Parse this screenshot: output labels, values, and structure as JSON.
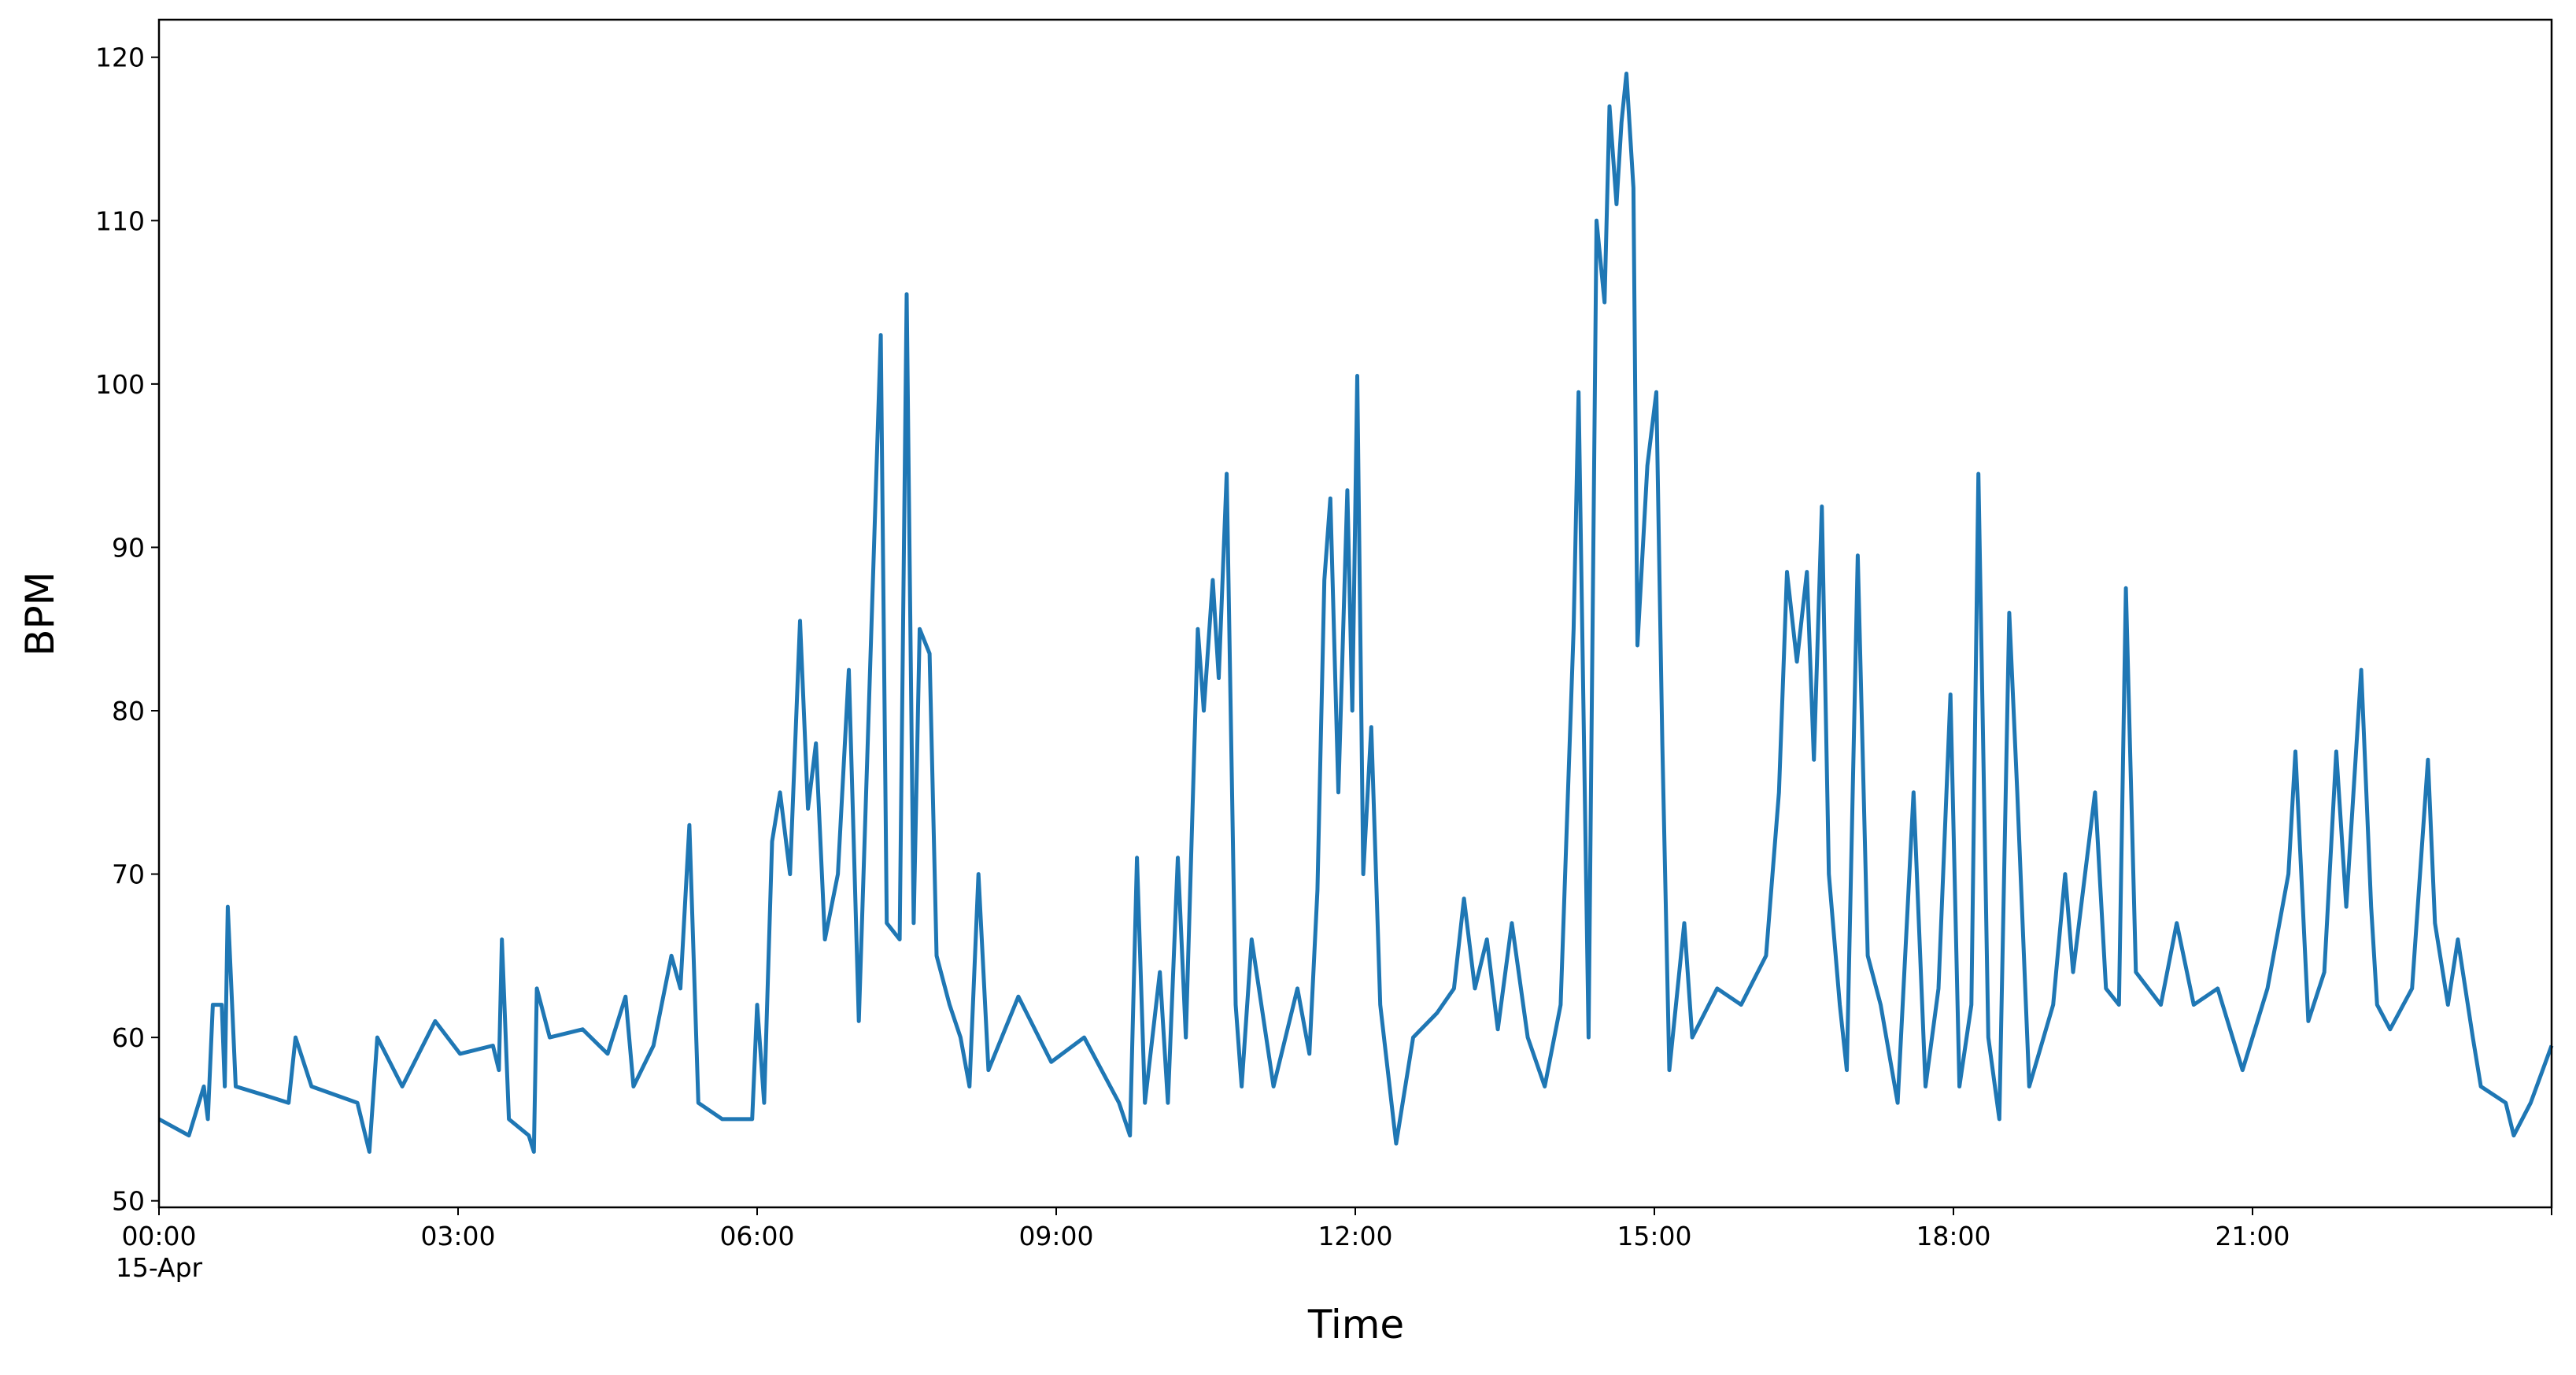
{
  "chart_data": {
    "type": "line",
    "xlabel": "Time",
    "ylabel": "BPM",
    "x_date_label": "15-Apr",
    "color": "#1f77b4",
    "x": [
      0,
      0.3,
      0.45,
      0.49,
      0.54,
      0.63,
      0.66,
      0.69,
      0.77,
      1.04,
      1.3,
      1.37,
      1.53,
      1.99,
      2.11,
      2.19,
      2.44,
      2.77,
      3.02,
      3.35,
      3.41,
      3.44,
      3.51,
      3.71,
      3.76,
      3.79,
      3.92,
      4.25,
      4.5,
      4.68,
      4.76,
      4.96,
      5.14,
      5.23,
      5.32,
      5.41,
      5.65,
      5.95,
      6.0,
      6.07,
      6.15,
      6.23,
      6.33,
      6.43,
      6.51,
      6.59,
      6.68,
      6.81,
      6.92,
      7.02,
      7.24,
      7.3,
      7.43,
      7.5,
      7.57,
      7.63,
      7.73,
      7.8,
      7.93,
      8.04,
      8.13,
      8.22,
      8.32,
      8.62,
      8.95,
      9.28,
      9.63,
      9.74,
      9.81,
      9.89,
      10.04,
      10.12,
      10.22,
      10.3,
      10.42,
      10.48,
      10.57,
      10.63,
      10.71,
      10.8,
      10.86,
      10.96,
      11.18,
      11.42,
      11.54,
      11.62,
      11.69,
      11.75,
      11.83,
      11.92,
      11.97,
      12.02,
      12.08,
      12.16,
      12.25,
      12.41,
      12.58,
      12.82,
      12.99,
      13.09,
      13.2,
      13.32,
      13.43,
      13.57,
      13.73,
      13.9,
      14.06,
      14.19,
      14.24,
      14.34,
      14.42,
      14.5,
      14.55,
      14.62,
      14.67,
      14.72,
      14.79,
      14.83,
      14.93,
      15.02,
      15.08,
      15.15,
      15.3,
      15.38,
      15.63,
      15.87,
      16.12,
      16.25,
      16.33,
      16.43,
      16.53,
      16.6,
      16.68,
      16.75,
      16.86,
      16.93,
      17.04,
      17.14,
      17.27,
      17.44,
      17.6,
      17.72,
      17.85,
      17.97,
      18.06,
      18.18,
      18.25,
      18.35,
      18.46,
      18.56,
      18.64,
      18.76,
      19.0,
      19.12,
      19.2,
      19.42,
      19.53,
      19.66,
      19.73,
      19.83,
      20.08,
      20.24,
      20.41,
      20.65,
      20.9,
      21.15,
      21.36,
      21.43,
      21.56,
      21.72,
      21.84,
      21.94,
      22.09,
      22.19,
      22.25,
      22.38,
      22.6,
      22.76,
      22.83,
      22.96,
      23.06,
      23.21,
      23.29,
      23.54,
      23.62,
      23.79,
      24.0
    ],
    "values": [
      55,
      54,
      57,
      55,
      62,
      62,
      57,
      68,
      57,
      56.5,
      56,
      60,
      57,
      56,
      53,
      60,
      57,
      61,
      59,
      59.5,
      58,
      66,
      55,
      54,
      53,
      63,
      60,
      60.5,
      59,
      62.5,
      57,
      59.5,
      65,
      63,
      73,
      56,
      55,
      55,
      62,
      56,
      72,
      75,
      70,
      85.5,
      74,
      78,
      66,
      70,
      82.5,
      61,
      103,
      67,
      66,
      105.5,
      67,
      85,
      83.5,
      65,
      62,
      60,
      57,
      70,
      58,
      62.5,
      58.5,
      60,
      56,
      54,
      71,
      56,
      64,
      56,
      71,
      60,
      85,
      80,
      88,
      82,
      94.5,
      62,
      57,
      66,
      57,
      63,
      59,
      69,
      88,
      93,
      75,
      93.5,
      80,
      100.5,
      70,
      79,
      62,
      53.5,
      60,
      61.5,
      63,
      68.5,
      63,
      66,
      60.5,
      67,
      60,
      57,
      62,
      85,
      99.5,
      60,
      110,
      105,
      117,
      111,
      116,
      119,
      112,
      84,
      95,
      99.5,
      78,
      58,
      67,
      60,
      63,
      62,
      65,
      75,
      88.5,
      83,
      88.5,
      77,
      92.5,
      70,
      62,
      58,
      89.5,
      65,
      62,
      56,
      75,
      57,
      63,
      81,
      57,
      62,
      94.5,
      60,
      55,
      86,
      75,
      57,
      62,
      70,
      64,
      75,
      63,
      62,
      87.5,
      64,
      62,
      67,
      62,
      63,
      58,
      63,
      70,
      77.5,
      61,
      64,
      77.5,
      68,
      82.5,
      68,
      62,
      60.5,
      63,
      77,
      67,
      62,
      66,
      60,
      57,
      56,
      54,
      56,
      59.5
    ],
    "xlim": [
      0,
      24
    ],
    "xticks": [
      {
        "value": 0,
        "label": "00:00"
      },
      {
        "value": 3,
        "label": "03:00"
      },
      {
        "value": 6,
        "label": "06:00"
      },
      {
        "value": 9,
        "label": "09:00"
      },
      {
        "value": 12,
        "label": "12:00"
      },
      {
        "value": 15,
        "label": "15:00"
      },
      {
        "value": 18,
        "label": "18:00"
      },
      {
        "value": 21,
        "label": "21:00"
      }
    ],
    "ylim": [
      49.6,
      122.3
    ],
    "yticks": [
      50,
      60,
      70,
      80,
      90,
      100,
      110,
      120
    ]
  }
}
